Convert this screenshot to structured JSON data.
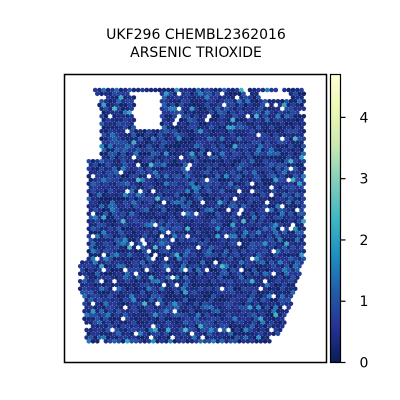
{
  "chart_data": {
    "type": "scatter",
    "subtype": "spatial-hexbin-spot-map",
    "title_lines": [
      "UKF296 CHEMBL2362016",
      "ARSENIC TRIOXIDE"
    ],
    "xlabel": "",
    "ylabel": "",
    "x_axis_ticks": false,
    "y_axis_ticks": false,
    "colormap": "YlGnBu_r",
    "colormap_stops": [
      "#081d58",
      "#253494",
      "#225ea8",
      "#1d91c0",
      "#41b6c4",
      "#7fcdbb",
      "#c7e9b4",
      "#edf8b1",
      "#ffffd9"
    ],
    "color_range": [
      0,
      4.7
    ],
    "colorbar": {
      "ticks": [
        0,
        1,
        2,
        3,
        4
      ],
      "labels": [
        "0",
        "1",
        "2",
        "3",
        "4"
      ],
      "placement": "right"
    },
    "value_summary": {
      "typical_value": 0.5,
      "max_value": 2.5,
      "distribution": "most spots near 0–1, sparse spots between 1.5 and 2.5"
    },
    "grid": false,
    "legend": "none"
  }
}
